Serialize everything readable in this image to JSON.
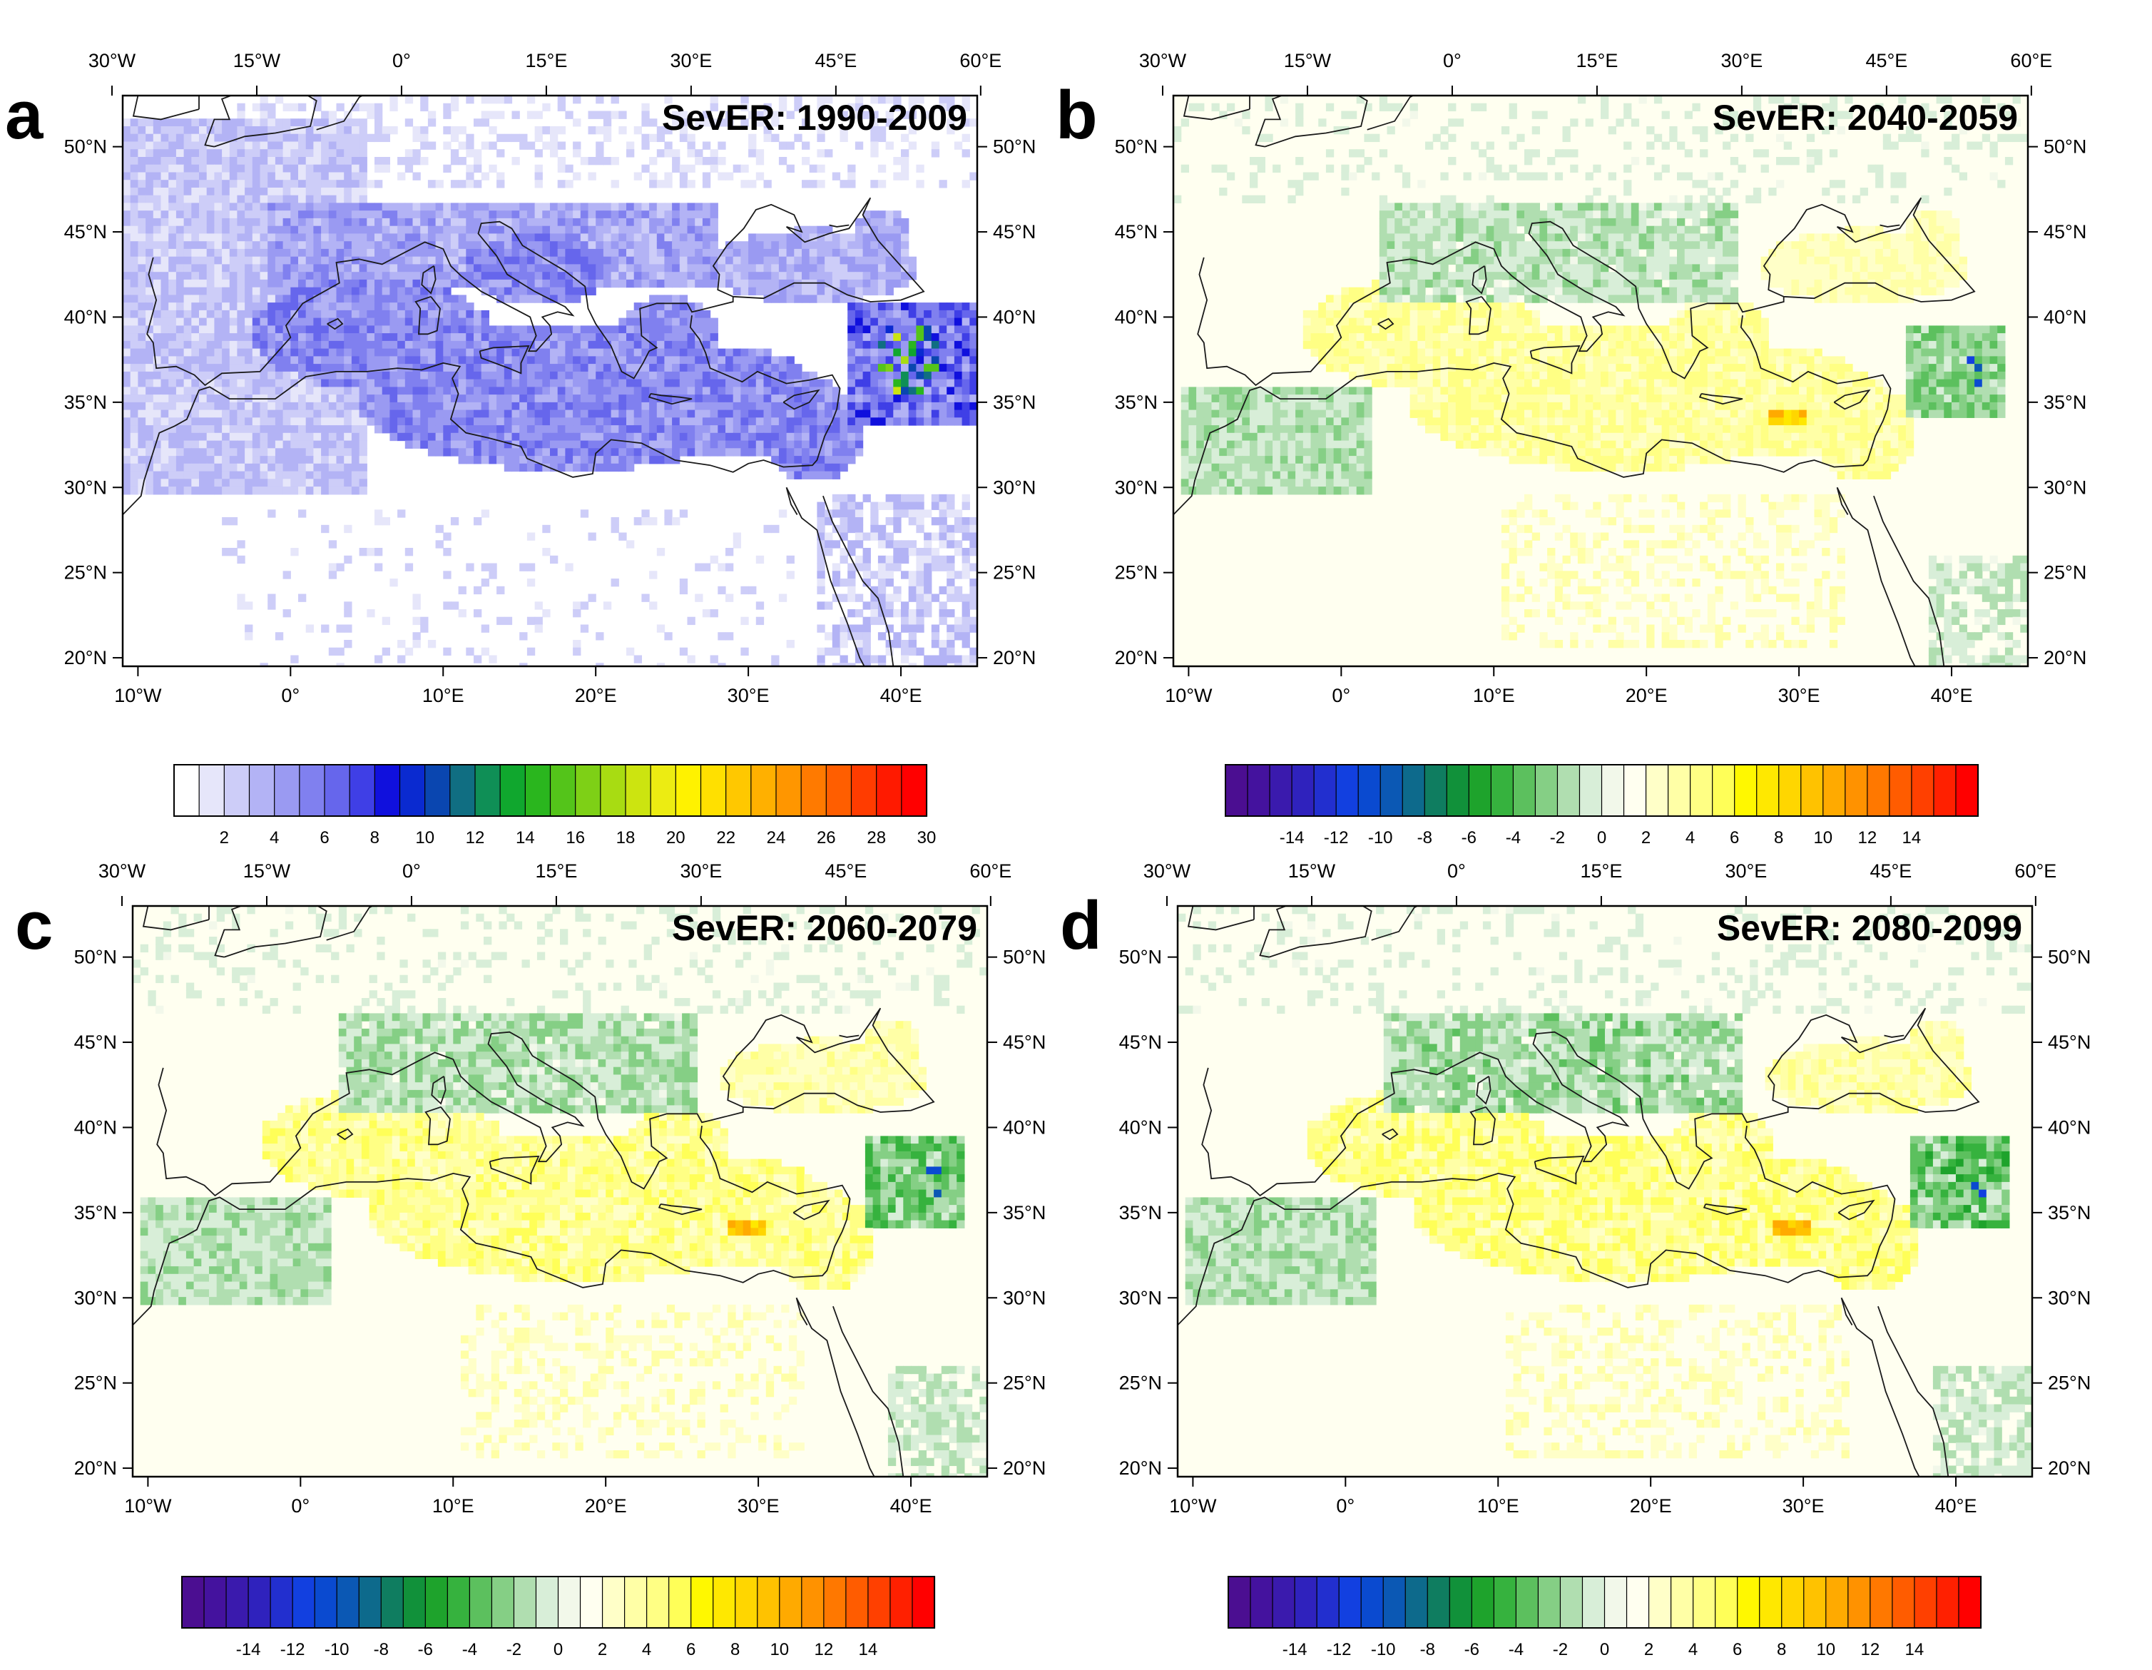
{
  "figure": {
    "panels": [
      {
        "letter": "a",
        "title": "SevER: 1990-2009",
        "kind": "absolute"
      },
      {
        "letter": "b",
        "title": "SevER: 2040-2059",
        "kind": "change"
      },
      {
        "letter": "c",
        "title": "SevER: 2060-2079",
        "kind": "change"
      },
      {
        "letter": "d",
        "title": "SevER: 2080-2099",
        "kind": "change"
      }
    ],
    "top_axis_labels": [
      "30°W",
      "15°W",
      "0°",
      "15°E",
      "30°E",
      "45°E",
      "60°E"
    ],
    "bottom_axis_labels": [
      "10°W",
      "0°",
      "10°E",
      "20°E",
      "30°E",
      "40°E"
    ],
    "lat_labels": [
      "50°N",
      "45°N",
      "40°N",
      "35°N",
      "30°N",
      "25°N",
      "20°N"
    ],
    "colorbars": {
      "absolute": {
        "labels": [
          "2",
          "4",
          "6",
          "8",
          "10",
          "12",
          "14",
          "16",
          "18",
          "20",
          "22",
          "24",
          "26",
          "28",
          "30"
        ],
        "colors": [
          "#ffffff",
          "#e6e6fa",
          "#cdcdf8",
          "#b3b3f5",
          "#9a9af2",
          "#8080ef",
          "#6666ec",
          "#3f3fe6",
          "#1010dd",
          "#0a2ad0",
          "#0a46b0",
          "#106e82",
          "#0f8f56",
          "#10a72e",
          "#2ab61e",
          "#54c41a",
          "#7ed016",
          "#a8dc12",
          "#cce410",
          "#ecec12",
          "#fff200",
          "#ffe000",
          "#ffc800",
          "#ffb000",
          "#ff9600",
          "#ff7a00",
          "#ff5e00",
          "#ff3c00",
          "#ff1a00",
          "#ff0000"
        ]
      },
      "change": {
        "labels": [
          "-14",
          "-12",
          "-10",
          "-8",
          "-6",
          "-4",
          "-2",
          "0",
          "2",
          "4",
          "6",
          "8",
          "10",
          "12",
          "14"
        ],
        "colors": [
          "#4b0e91",
          "#44129e",
          "#3a1aad",
          "#2f22bd",
          "#222fcf",
          "#1240e0",
          "#0a4ad0",
          "#0b58b4",
          "#0d6a8c",
          "#0f7d60",
          "#11913a",
          "#1ea32c",
          "#36b23e",
          "#5cc05e",
          "#85cf85",
          "#b0deb0",
          "#d8eed8",
          "#f2f8ea",
          "#fffff0",
          "#ffffc8",
          "#ffffa6",
          "#ffff84",
          "#ffff58",
          "#fff800",
          "#ffe800",
          "#ffd600",
          "#ffc200",
          "#ffaa00",
          "#ff9200",
          "#ff7800",
          "#ff5c00",
          "#ff4000",
          "#ff2000",
          "#ff0000"
        ]
      }
    }
  }
}
